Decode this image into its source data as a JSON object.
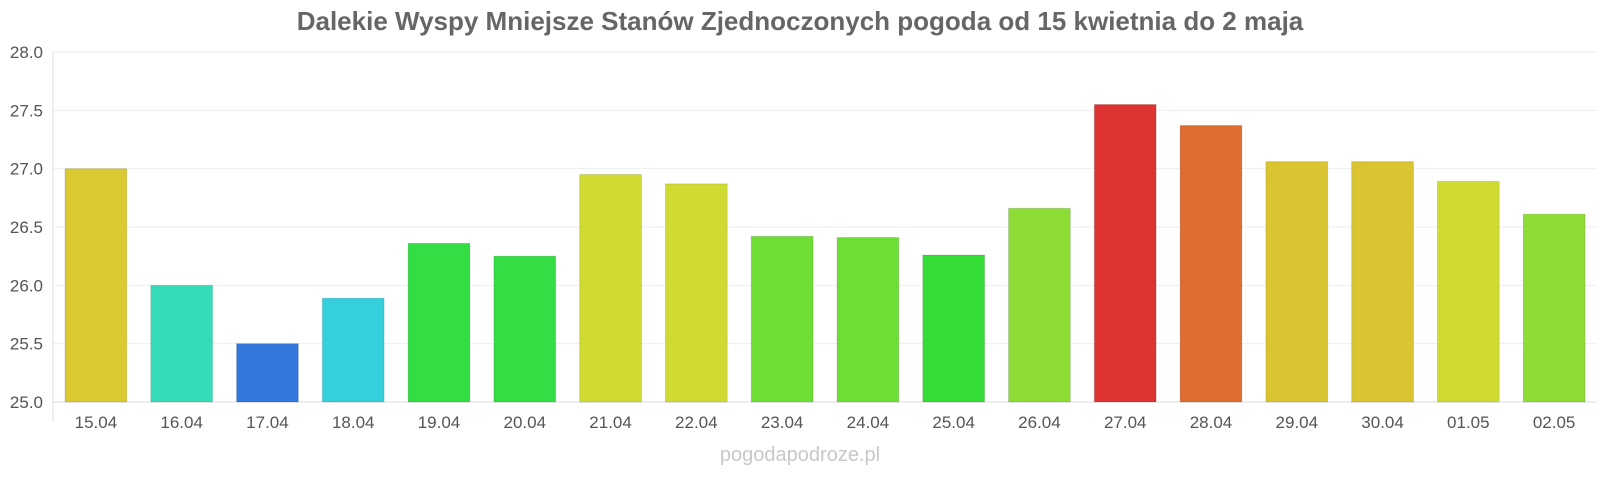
{
  "chart_data": {
    "type": "bar",
    "title": "Dalekie Wyspy Mniejsze Stanów Zjednoczonych pogoda od 15 kwietnia do 2 maja",
    "categories": [
      "15.04",
      "16.04",
      "17.04",
      "18.04",
      "19.04",
      "20.04",
      "21.04",
      "22.04",
      "23.04",
      "24.04",
      "25.04",
      "26.04",
      "27.04",
      "28.04",
      "29.04",
      "30.04",
      "01.05",
      "02.05"
    ],
    "values": [
      27.0,
      26.0,
      25.5,
      25.89,
      26.36,
      26.25,
      26.95,
      26.87,
      26.42,
      26.41,
      26.26,
      26.66,
      27.55,
      27.37,
      27.06,
      27.06,
      26.89,
      26.61
    ],
    "colors": [
      "#dbc932",
      "#36dbb9",
      "#3377dd",
      "#36d0dd",
      "#33dd44",
      "#33dd44",
      "#cfdb33",
      "#cfdb33",
      "#6edd36",
      "#6edd36",
      "#33dd36",
      "#8ddd36",
      "#dd3333",
      "#dd6d33",
      "#dbc432",
      "#dbc432",
      "#cfdb33",
      "#8ddd36"
    ],
    "ylim": [
      25.0,
      28.0
    ],
    "yticks": [
      "25.0",
      "25.5",
      "26.0",
      "26.5",
      "27.0",
      "27.5",
      "28.0"
    ],
    "xlabel": "",
    "ylabel": "",
    "grid": true,
    "legend": "none"
  },
  "watermark": "pogodapodroze.pl"
}
